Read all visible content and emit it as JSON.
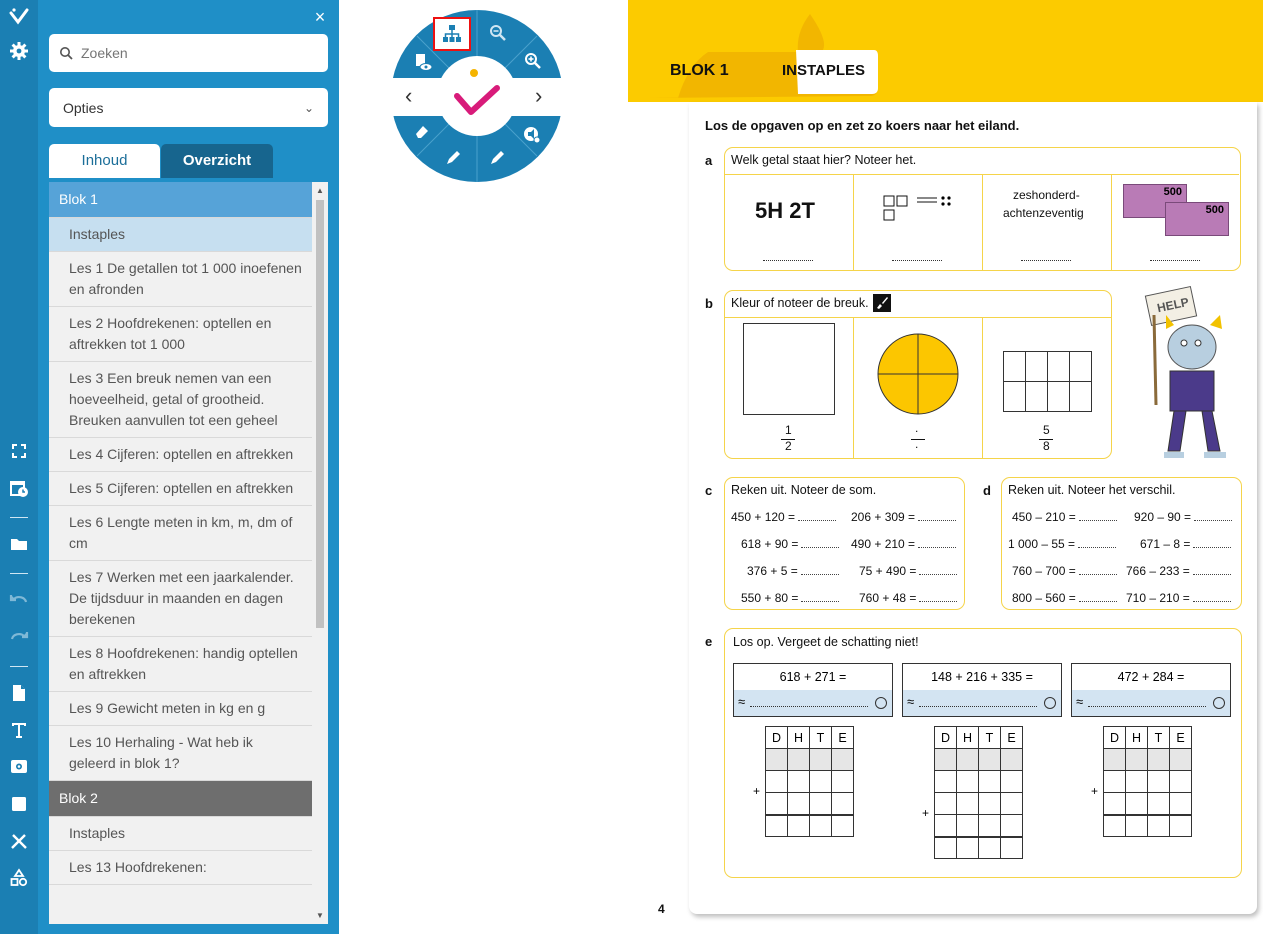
{
  "colors": {
    "toolbar": "#1b7fb3",
    "sidebar": "#1f8fc7",
    "accent_yellow": "#fccb00",
    "blok1": "#56a3d8",
    "blok2": "#6e6e6e",
    "selected": "#c6dff0",
    "logo_pink": "#d81b7a"
  },
  "toolbar": {
    "icons": [
      "check-logo-icon",
      "settings-icon",
      "fullscreen-icon",
      "calendar-clock-icon",
      "folder-icon",
      "undo-icon",
      "redo-icon",
      "document-icon",
      "text-icon",
      "screen-icon",
      "square-icon",
      "tools-icon",
      "shapes-icon"
    ]
  },
  "sidebar": {
    "close": "×",
    "search": {
      "placeholder": "Zoeken"
    },
    "options": {
      "label": "Opties",
      "chevron": "⌄"
    },
    "tabs": [
      {
        "label": "Inhoud",
        "active": true
      },
      {
        "label": "Overzicht",
        "active": false
      }
    ],
    "items": [
      {
        "type": "blok",
        "label": "Blok 1"
      },
      {
        "type": "item",
        "label": "Instaples",
        "selected": true
      },
      {
        "type": "item",
        "label": "Les 1 De getallen tot 1 000 inoefenen en afronden"
      },
      {
        "type": "item",
        "label": "Les 2 Hoofdrekenen: optellen en aftrekken tot 1 000"
      },
      {
        "type": "item",
        "label": "Les 3 Een breuk nemen van een hoeveelheid, getal of grootheid. Breuken aanvullen tot een geheel"
      },
      {
        "type": "item",
        "label": "Les 4 Cijferen: optellen en aftrekken"
      },
      {
        "type": "item",
        "label": "Les 5 Cijferen: optellen en aftrekken"
      },
      {
        "type": "item",
        "label": "Les 6 Lengte meten in km, m, dm of cm"
      },
      {
        "type": "item",
        "label": "Les 7 Werken met een jaarkalender. De tijdsduur in maanden en dagen berekenen"
      },
      {
        "type": "item",
        "label": "Les 8 Hoofdrekenen: handig optellen en aftrekken"
      },
      {
        "type": "item",
        "label": "Les 9 Gewicht meten in kg en g"
      },
      {
        "type": "item",
        "label": "Les 10 Herhaling - Wat heb ik geleerd in blok 1?"
      },
      {
        "type": "blok",
        "label": "Blok 2"
      },
      {
        "type": "item",
        "label": "Instaples"
      },
      {
        "type": "item",
        "label": "Les 13 Hoofdrekenen:"
      }
    ]
  },
  "radial": {
    "icons": [
      "sitemap-icon",
      "zoom-out-icon",
      "zoom-in-icon",
      "reveal-icon",
      "chevron-left-icon",
      "chevron-right-icon",
      "eraser-icon",
      "pen-icon",
      "highlighter-icon",
      "speaker-icon"
    ],
    "prev": "‹",
    "next": "›"
  },
  "workbook": {
    "tab_blok": "BLOK 1",
    "tab_title": "INSTAPLES",
    "instruction": "Los de opgaven op en zet zo koers naar het eiland.",
    "page_number": "4",
    "a": {
      "letter": "a",
      "prompt": "Welk getal staat hier? Noteer het.",
      "cell1": "5H 2T",
      "cell3_line1": "zeshonderd-",
      "cell3_line2": "achtenzeventig",
      "money": [
        "500",
        "500"
      ]
    },
    "b": {
      "letter": "b",
      "prompt": "Kleur of noteer de breuk.",
      "frac1_num": "1",
      "frac1_den": "2",
      "frac2_num": ".",
      "frac2_den": ".",
      "frac3_num": "5",
      "frac3_den": "8",
      "help": "HELP"
    },
    "c": {
      "letter": "c",
      "prompt": "Reken uit. Noteer de som.",
      "left": [
        "450 + 120 =",
        "618 + 90 =",
        "376 + 5 =",
        "550 + 80 ="
      ],
      "right": [
        "206 + 309 =",
        "490 + 210 =",
        "75 + 490 =",
        "760 + 48 ="
      ]
    },
    "d": {
      "letter": "d",
      "prompt": "Reken uit. Noteer het verschil.",
      "left": [
        "450 – 210 =",
        "1 000 – 55 =",
        "760 – 700 =",
        "800 – 560 ="
      ],
      "right": [
        "920 – 90 =",
        "671 – 8 =",
        "766 – 233 =",
        "710 – 210 ="
      ]
    },
    "e": {
      "letter": "e",
      "prompt": "Los op. Vergeet de schatting niet!",
      "sums": [
        "618 + 271 =",
        "148 + 216 + 335 =",
        "472 + 284 ="
      ],
      "approx": "≈",
      "headers": [
        "D",
        "H",
        "T",
        "E"
      ],
      "plus": "+"
    }
  }
}
